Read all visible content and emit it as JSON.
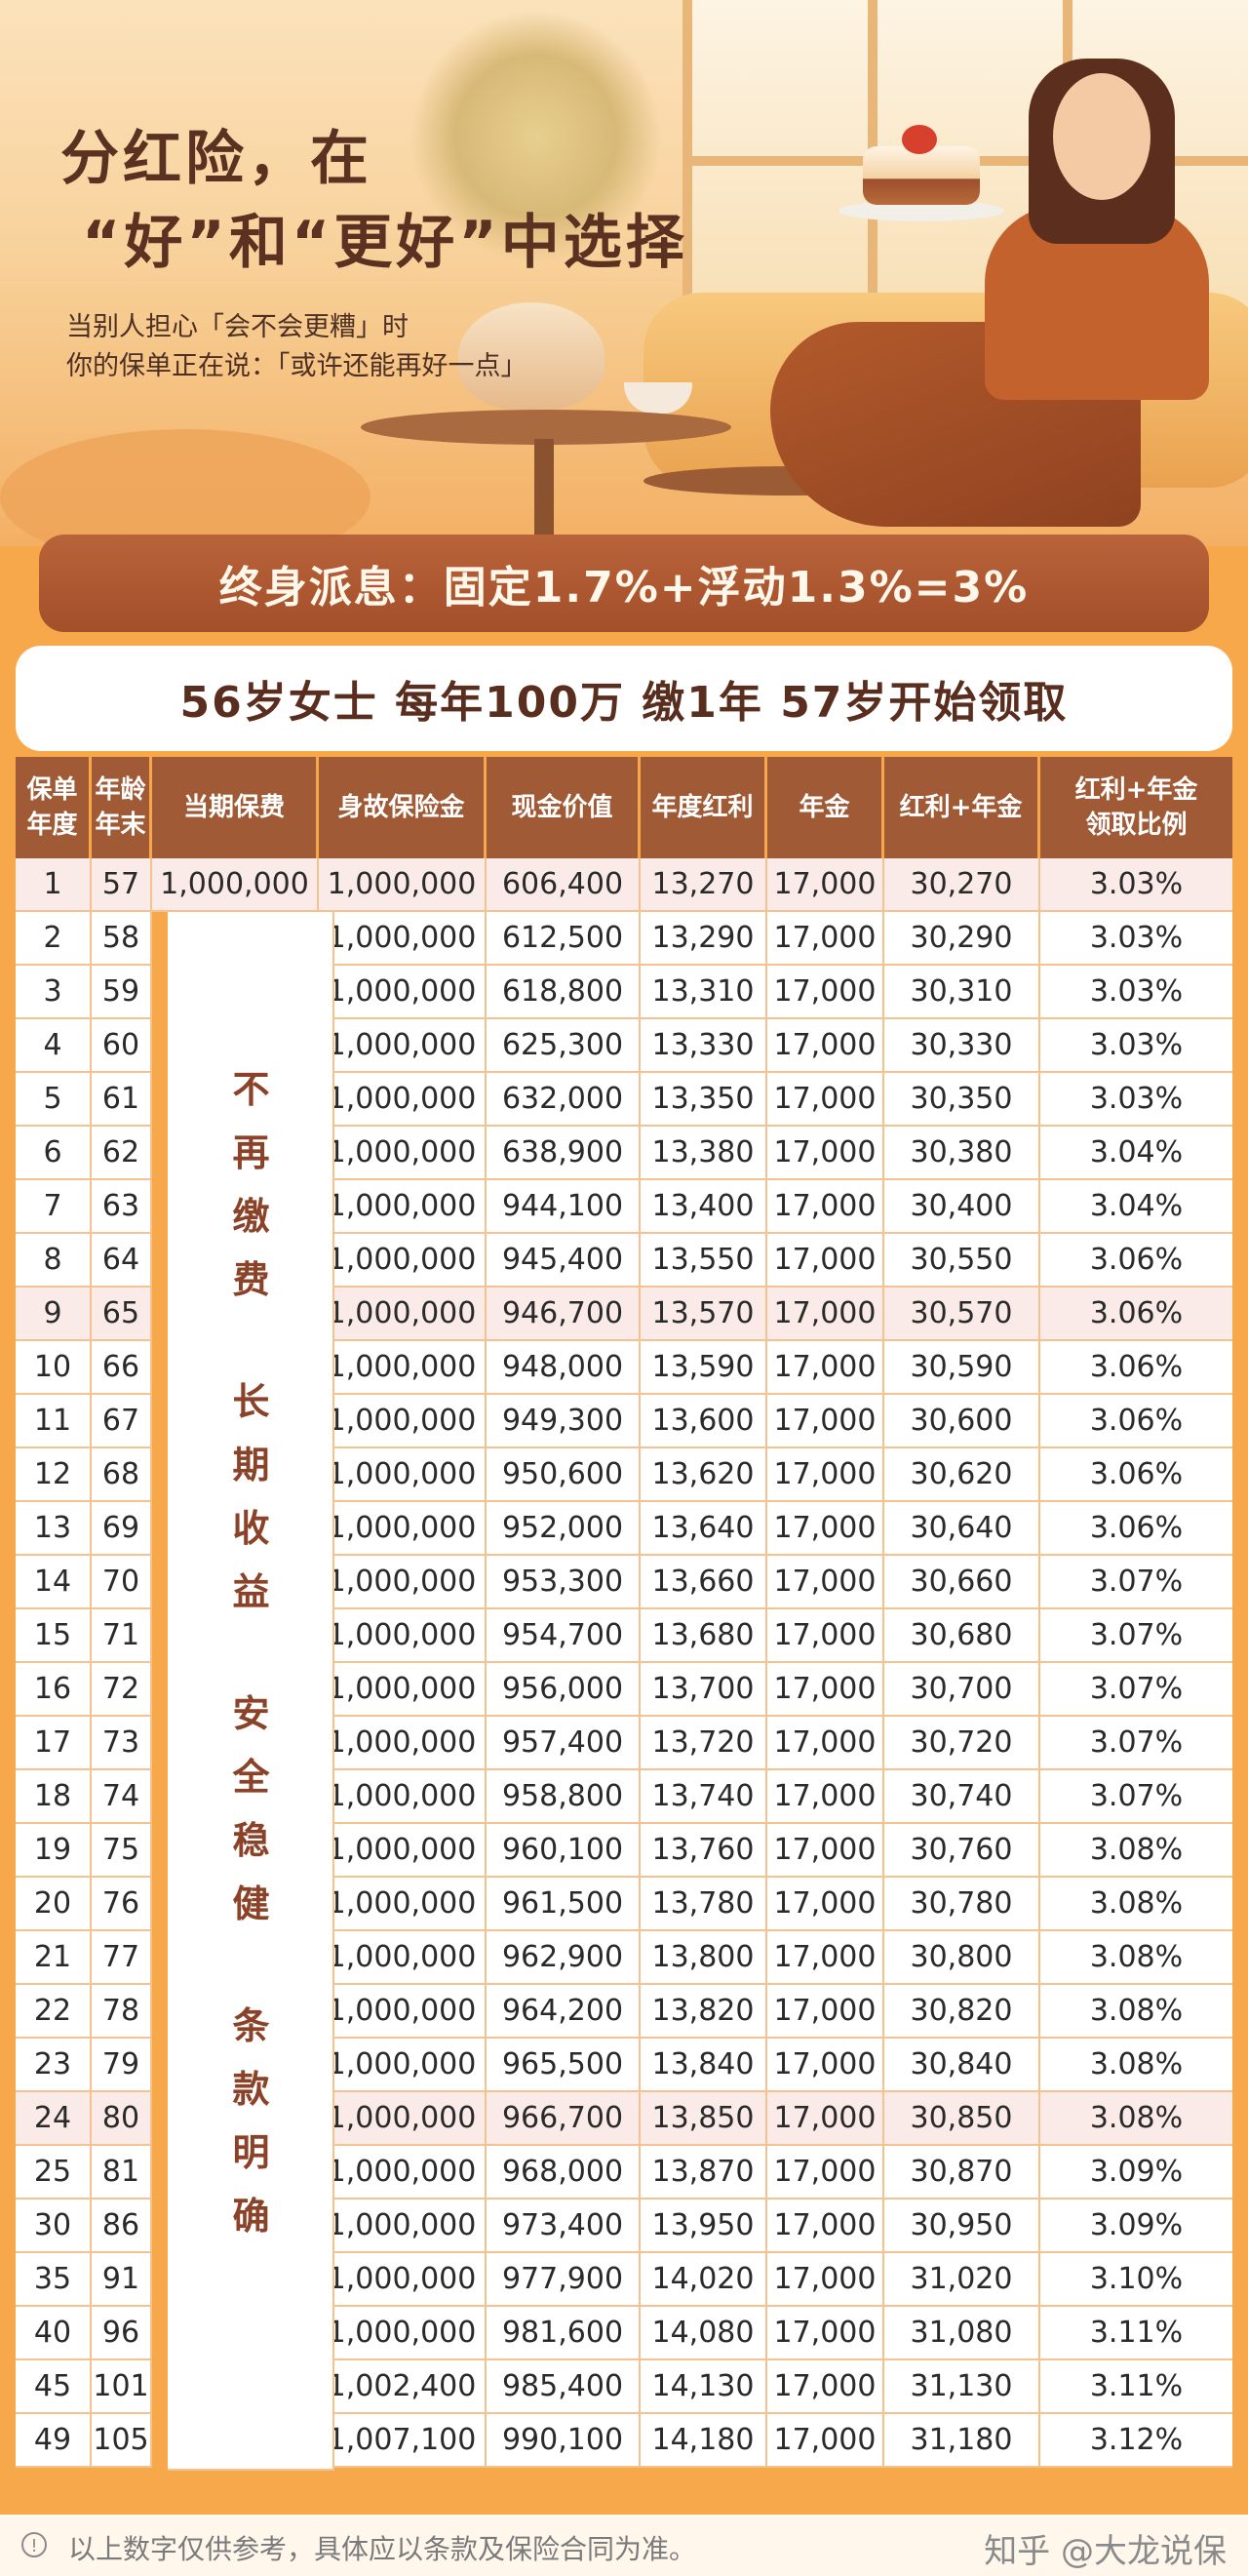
{
  "hero": {
    "title_line1": "分红险，在",
    "title_line2": "“好”和“更好”中选择",
    "subtitle_line1": "当别人担心「会不会更糟」时",
    "subtitle_line2": "你的保单正在说：「或许还能再好一点」"
  },
  "banner": {
    "text": "终身派息：固定1.7%+浮动1.3%=3%"
  },
  "scenario": {
    "text": "56岁女士   每年100万 缴1年   57岁开始领取"
  },
  "table": {
    "headers": [
      [
        "保单",
        "年度"
      ],
      [
        "年龄",
        "年末"
      ],
      [
        "当期保费"
      ],
      [
        "身故保险金"
      ],
      [
        "现金价值"
      ],
      [
        "年度红利"
      ],
      [
        "年金"
      ],
      [
        "红利+年金"
      ],
      [
        "红利+年金",
        "领取比例"
      ]
    ],
    "first_premium": "1,000,000",
    "side_labels": [
      "不",
      "再",
      "缴",
      "费",
      "长",
      "期",
      "收",
      "益",
      "安",
      "全",
      "稳",
      "健",
      "条",
      "款",
      "明",
      "确"
    ],
    "rows": [
      [
        "1",
        "57",
        "1,000,000",
        "606,400",
        "13,270",
        "17,000",
        "30,270",
        "3.03%"
      ],
      [
        "2",
        "58",
        "1,000,000",
        "612,500",
        "13,290",
        "17,000",
        "30,290",
        "3.03%"
      ],
      [
        "3",
        "59",
        "1,000,000",
        "618,800",
        "13,310",
        "17,000",
        "30,310",
        "3.03%"
      ],
      [
        "4",
        "60",
        "1,000,000",
        "625,300",
        "13,330",
        "17,000",
        "30,330",
        "3.03%"
      ],
      [
        "5",
        "61",
        "1,000,000",
        "632,000",
        "13,350",
        "17,000",
        "30,350",
        "3.03%"
      ],
      [
        "6",
        "62",
        "1,000,000",
        "638,900",
        "13,380",
        "17,000",
        "30,380",
        "3.04%"
      ],
      [
        "7",
        "63",
        "1,000,000",
        "944,100",
        "13,400",
        "17,000",
        "30,400",
        "3.04%"
      ],
      [
        "8",
        "64",
        "1,000,000",
        "945,400",
        "13,550",
        "17,000",
        "30,550",
        "3.06%"
      ],
      [
        "9",
        "65",
        "1,000,000",
        "946,700",
        "13,570",
        "17,000",
        "30,570",
        "3.06%"
      ],
      [
        "10",
        "66",
        "1,000,000",
        "948,000",
        "13,590",
        "17,000",
        "30,590",
        "3.06%"
      ],
      [
        "11",
        "67",
        "1,000,000",
        "949,300",
        "13,600",
        "17,000",
        "30,600",
        "3.06%"
      ],
      [
        "12",
        "68",
        "1,000,000",
        "950,600",
        "13,620",
        "17,000",
        "30,620",
        "3.06%"
      ],
      [
        "13",
        "69",
        "1,000,000",
        "952,000",
        "13,640",
        "17,000",
        "30,640",
        "3.06%"
      ],
      [
        "14",
        "70",
        "1,000,000",
        "953,300",
        "13,660",
        "17,000",
        "30,660",
        "3.07%"
      ],
      [
        "15",
        "71",
        "1,000,000",
        "954,700",
        "13,680",
        "17,000",
        "30,680",
        "3.07%"
      ],
      [
        "16",
        "72",
        "1,000,000",
        "956,000",
        "13,700",
        "17,000",
        "30,700",
        "3.07%"
      ],
      [
        "17",
        "73",
        "1,000,000",
        "957,400",
        "13,720",
        "17,000",
        "30,720",
        "3.07%"
      ],
      [
        "18",
        "74",
        "1,000,000",
        "958,800",
        "13,740",
        "17,000",
        "30,740",
        "3.07%"
      ],
      [
        "19",
        "75",
        "1,000,000",
        "960,100",
        "13,760",
        "17,000",
        "30,760",
        "3.08%"
      ],
      [
        "20",
        "76",
        "1,000,000",
        "961,500",
        "13,780",
        "17,000",
        "30,780",
        "3.08%"
      ],
      [
        "21",
        "77",
        "1,000,000",
        "962,900",
        "13,800",
        "17,000",
        "30,800",
        "3.08%"
      ],
      [
        "22",
        "78",
        "1,000,000",
        "964,200",
        "13,820",
        "17,000",
        "30,820",
        "3.08%"
      ],
      [
        "23",
        "79",
        "1,000,000",
        "965,500",
        "13,840",
        "17,000",
        "30,840",
        "3.08%"
      ],
      [
        "24",
        "80",
        "1,000,000",
        "966,700",
        "13,850",
        "17,000",
        "30,850",
        "3.08%"
      ],
      [
        "25",
        "81",
        "1,000,000",
        "968,000",
        "13,870",
        "17,000",
        "30,870",
        "3.09%"
      ],
      [
        "30",
        "86",
        "1,000,000",
        "973,400",
        "13,950",
        "17,000",
        "30,950",
        "3.09%"
      ],
      [
        "35",
        "91",
        "1,000,000",
        "977,900",
        "14,020",
        "17,000",
        "31,020",
        "3.10%"
      ],
      [
        "40",
        "96",
        "1,000,000",
        "981,600",
        "14,080",
        "17,000",
        "31,080",
        "3.11%"
      ],
      [
        "45",
        "101",
        "1,002,400",
        "985,400",
        "14,130",
        "17,000",
        "31,130",
        "3.11%"
      ],
      [
        "49",
        "105",
        "1,007,100",
        "990,100",
        "14,180",
        "17,000",
        "31,180",
        "3.12%"
      ]
    ],
    "highlighted_years": [
      "1",
      "9",
      "24"
    ]
  },
  "footer": {
    "note": "以上数字仅供参考，具体应以条款及保险合同为准。",
    "brand": "知乎 @大龙说保",
    "info_icon": "info-circle-icon"
  }
}
